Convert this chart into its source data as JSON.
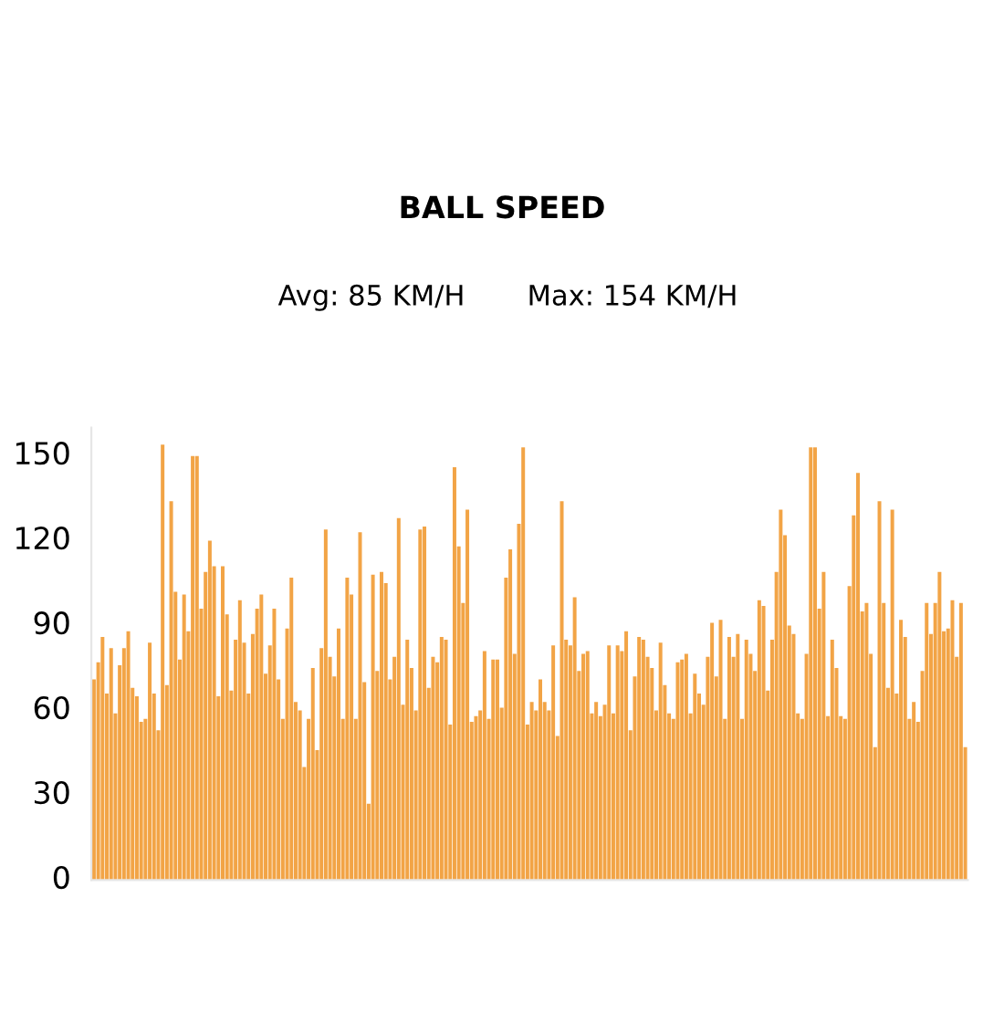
{
  "chart_data": {
    "type": "bar",
    "title": "BALL SPEED",
    "annotations": [
      "Avg: 85 KM/H",
      "Max: 154 KM/H"
    ],
    "color": "#f2a446",
    "categories": [
      null,
      null,
      null,
      null,
      null,
      null,
      null,
      null,
      null,
      null,
      null,
      null,
      null,
      null,
      null,
      null,
      null,
      null,
      null,
      null,
      null,
      null,
      null,
      null,
      null,
      null,
      null,
      null,
      null,
      null,
      null,
      null,
      null,
      null,
      null,
      null,
      null,
      null,
      null,
      null,
      null,
      null,
      null,
      null,
      null,
      null,
      null,
      null,
      null,
      null,
      null,
      null,
      null,
      null,
      null,
      null,
      null,
      null,
      null,
      null,
      null,
      null,
      null,
      null,
      null,
      null,
      null,
      null,
      null,
      null,
      null,
      null,
      null,
      null,
      null,
      null,
      null,
      null,
      null,
      null,
      null,
      null,
      null,
      null,
      null,
      null,
      null,
      null,
      null,
      null,
      null,
      null,
      null,
      null,
      null,
      null,
      null,
      null,
      null,
      null,
      null,
      null,
      null,
      null,
      null,
      null,
      null,
      null,
      null,
      null,
      null,
      null,
      null,
      null,
      null,
      null,
      null,
      null,
      null,
      null,
      null,
      null,
      null,
      null,
      null,
      null,
      null,
      null,
      null,
      null,
      null,
      null,
      null,
      null,
      null,
      null,
      null,
      null,
      null,
      null,
      null,
      null,
      null,
      null,
      null,
      null,
      null,
      null,
      null,
      null,
      null,
      null,
      null,
      null,
      null,
      null,
      null,
      null,
      null,
      null,
      null,
      null,
      null,
      null,
      null,
      null,
      null,
      null,
      null,
      null,
      null,
      null,
      null,
      null,
      null,
      null,
      null,
      null,
      null,
      null,
      null,
      null,
      null,
      null,
      null,
      null,
      null,
      null,
      null,
      null,
      null,
      null,
      null,
      null,
      null,
      null,
      null,
      null,
      null,
      null,
      null,
      null,
      null,
      null
    ],
    "values": [
      71,
      77,
      86,
      66,
      82,
      59,
      76,
      82,
      88,
      68,
      65,
      56,
      57,
      84,
      66,
      53,
      154,
      69,
      134,
      102,
      78,
      101,
      88,
      150,
      150,
      96,
      109,
      120,
      111,
      65,
      111,
      94,
      67,
      85,
      99,
      84,
      66,
      87,
      96,
      101,
      73,
      83,
      96,
      71,
      57,
      89,
      107,
      63,
      60,
      40,
      57,
      75,
      46,
      82,
      124,
      79,
      72,
      89,
      57,
      107,
      101,
      57,
      123,
      70,
      27,
      108,
      74,
      109,
      105,
      71,
      79,
      128,
      62,
      85,
      75,
      60,
      124,
      125,
      68,
      79,
      77,
      86,
      85,
      55,
      146,
      118,
      98,
      131,
      56,
      58,
      60,
      81,
      57,
      78,
      78,
      61,
      107,
      117,
      80,
      126,
      153,
      55,
      63,
      60,
      71,
      63,
      60,
      83,
      51,
      134,
      85,
      83,
      100,
      74,
      80,
      81,
      59,
      63,
      58,
      62,
      83,
      59,
      83,
      81,
      88,
      53,
      72,
      86,
      85,
      79,
      75,
      60,
      84,
      69,
      59,
      57,
      77,
      78,
      80,
      59,
      73,
      66,
      62,
      79,
      91,
      72,
      92,
      57,
      86,
      79,
      87,
      57,
      85,
      80,
      74,
      99,
      97,
      67,
      85,
      109,
      131,
      122,
      90,
      87,
      59,
      57,
      80,
      153,
      153,
      96,
      109,
      58,
      85,
      75,
      58,
      57,
      104,
      129,
      144,
      95,
      98,
      80,
      47,
      134,
      98,
      68,
      131,
      66,
      92,
      86,
      57,
      63,
      56,
      74,
      98,
      87,
      98,
      109,
      88,
      89,
      99,
      79,
      98,
      47
    ],
    "ylim": [
      0,
      160
    ],
    "yticks": [
      0,
      30,
      60,
      90,
      120,
      150
    ],
    "grid": false,
    "legend": false
  }
}
